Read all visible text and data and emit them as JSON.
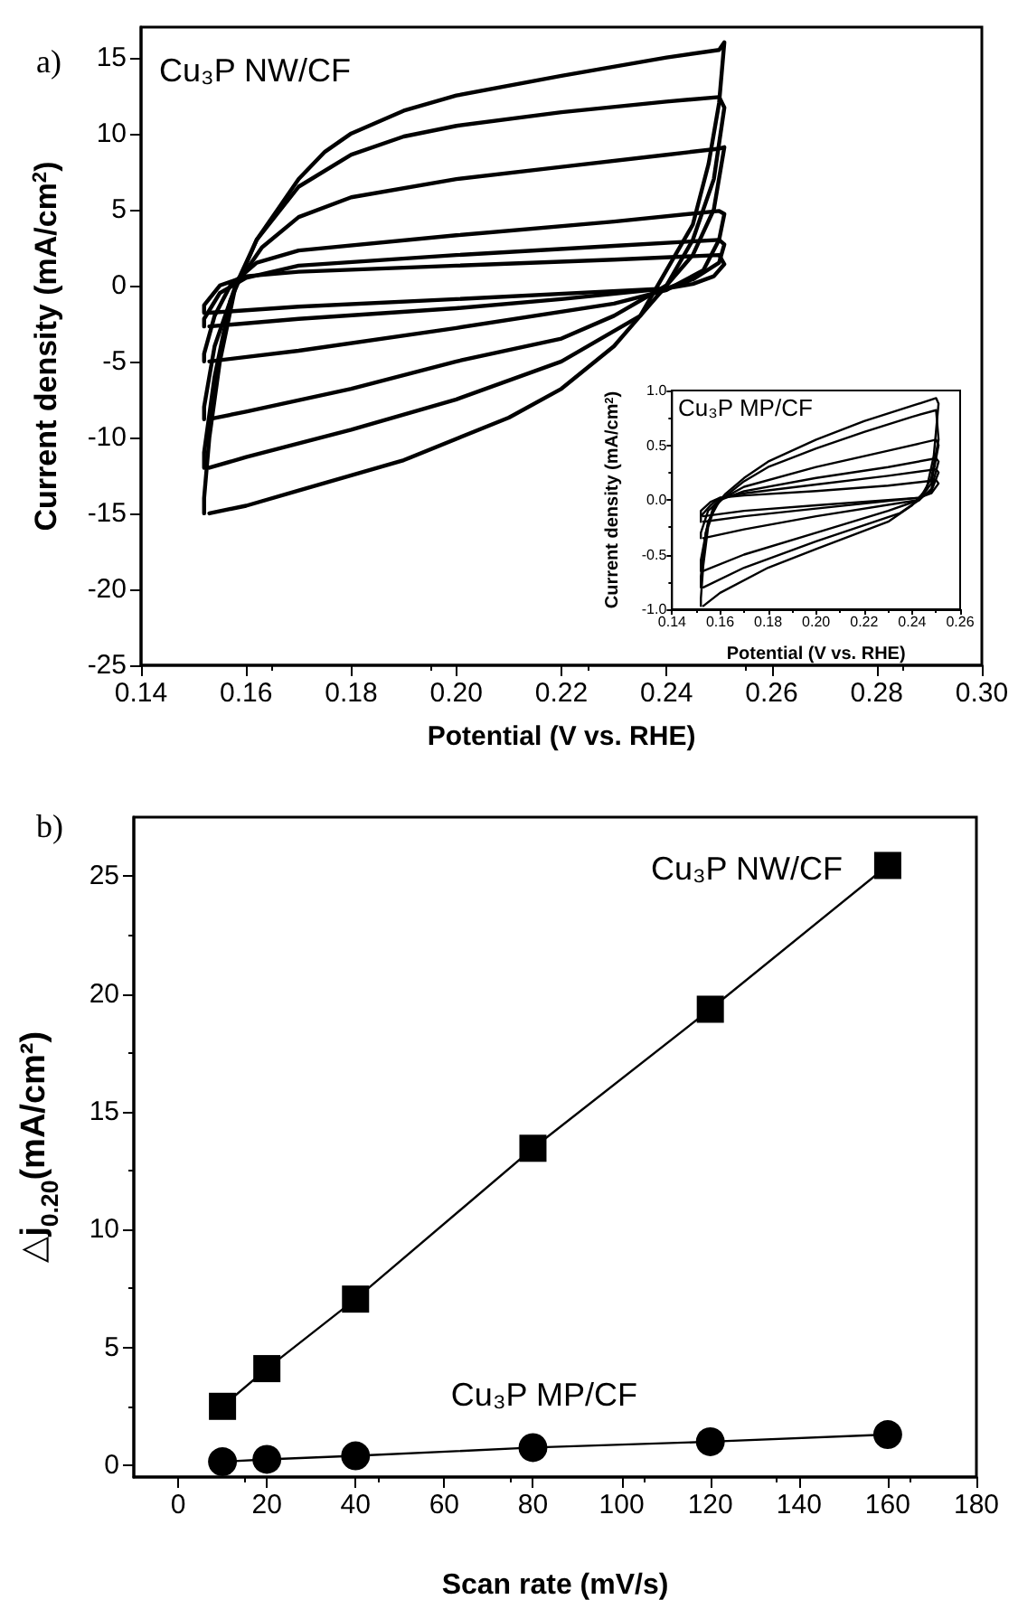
{
  "chart_data": [
    {
      "type": "line",
      "xlabel": "Potential (V vs. RHE)",
      "ylabel": "Current density (mA/cm$^{2}$)",
      "annotations": [
        "a)",
        "Cu₃P NW/CF"
      ],
      "marker": "none",
      "xlim": [
        0.14,
        0.3
      ],
      "ylim": [
        -25,
        17
      ],
      "xticks": [
        {
          "value": 0.14,
          "label": "0.14"
        },
        {
          "value": 0.16,
          "label": "0.16"
        },
        {
          "value": 0.18,
          "label": "0.18"
        },
        {
          "value": 0.2,
          "label": "0.20"
        },
        {
          "value": 0.22,
          "label": "0.22"
        },
        {
          "value": 0.24,
          "label": "0.24"
        },
        {
          "value": 0.26,
          "label": "0.26"
        },
        {
          "value": 0.28,
          "label": "0.28"
        },
        {
          "value": 0.3,
          "label": "0.30"
        }
      ],
      "yticks": [
        -25,
        -20,
        -15,
        -10,
        -5,
        0,
        5,
        10,
        15
      ],
      "series": [
        {
          "color": "#000000",
          "x": [
            0.152,
            0.152,
            0.153,
            0.155,
            0.158,
            0.162,
            0.166,
            0.17,
            0.175,
            0.18,
            0.19,
            0.2,
            0.22,
            0.24,
            0.25,
            0.251,
            0.25,
            0.248,
            0.245,
            0.24,
            0.235,
            0.23,
            0.22,
            0.21,
            0.19,
            0.18,
            0.17,
            0.16,
            0.153
          ],
          "values": [
            -15,
            -14,
            -10,
            -5,
            0,
            3,
            5,
            7,
            8.8,
            10,
            11.5,
            12.5,
            13.8,
            15,
            15.5,
            16,
            12,
            8,
            4,
            1,
            -2,
            -4,
            -6.8,
            -8.7,
            -11.5,
            -12.5,
            -13.5,
            -14.5,
            -15
          ]
        },
        {
          "color": "#000000",
          "x": [
            0.152,
            0.152,
            0.154,
            0.157,
            0.162,
            0.17,
            0.18,
            0.19,
            0.2,
            0.22,
            0.24,
            0.25,
            0.251,
            0.249,
            0.245,
            0.24,
            0.235,
            0.22,
            0.2,
            0.18,
            0.16,
            0.153
          ],
          "values": [
            -12,
            -11,
            -6,
            -1,
            3,
            6.5,
            8.6,
            9.8,
            10.5,
            11.4,
            12.1,
            12.4,
            11.7,
            7,
            3,
            0,
            -2,
            -5,
            -7.5,
            -9.5,
            -11.3,
            -12
          ]
        },
        {
          "color": "#000000",
          "x": [
            0.152,
            0.152,
            0.154,
            0.158,
            0.163,
            0.17,
            0.18,
            0.2,
            0.22,
            0.24,
            0.25,
            0.251,
            0.249,
            0.245,
            0.24,
            0.23,
            0.22,
            0.2,
            0.18,
            0.16,
            0.153
          ],
          "values": [
            -8.8,
            -8,
            -4,
            0,
            2.5,
            4.5,
            5.8,
            7,
            7.8,
            8.6,
            9,
            9.1,
            5,
            2,
            0,
            -2,
            -3.5,
            -5,
            -6.8,
            -8.3,
            -8.8
          ]
        },
        {
          "color": "#000000",
          "x": [
            0.152,
            0.152,
            0.154,
            0.157,
            0.162,
            0.17,
            0.2,
            0.23,
            0.25,
            0.251,
            0.25,
            0.247,
            0.24,
            0.23,
            0.2,
            0.17,
            0.153
          ],
          "values": [
            -5,
            -4.5,
            -2,
            0,
            1.5,
            2.3,
            3.3,
            4.2,
            4.9,
            4.7,
            3,
            1,
            -0.3,
            -1.2,
            -2.8,
            -4.3,
            -5
          ]
        },
        {
          "color": "#000000",
          "x": [
            0.152,
            0.152,
            0.155,
            0.16,
            0.17,
            0.2,
            0.23,
            0.25,
            0.251,
            0.25,
            0.245,
            0.24,
            0.22,
            0.2,
            0.17,
            0.153
          ],
          "values": [
            -2.7,
            -2.2,
            -0.5,
            0.5,
            1.3,
            2,
            2.6,
            3,
            2.7,
            1.5,
            0.4,
            -0.2,
            -0.9,
            -1.5,
            -2.2,
            -2.7
          ]
        },
        {
          "color": "#000000",
          "x": [
            0.152,
            0.152,
            0.155,
            0.16,
            0.17,
            0.2,
            0.23,
            0.25,
            0.251,
            0.249,
            0.245,
            0.24,
            0.2,
            0.17,
            0.153
          ],
          "values": [
            -1.8,
            -1.3,
            0,
            0.6,
            0.9,
            1.3,
            1.7,
            2,
            1.4,
            0.6,
            0.1,
            -0.2,
            -0.9,
            -1.4,
            -1.8
          ]
        }
      ]
    },
    {
      "type": "line",
      "xlabel": "Potential (V vs. RHE)",
      "ylabel": "Current density (mA/cm$^{2}$)",
      "annotations": [
        "Cu₃P MP/CF"
      ],
      "marker": "none",
      "xlim": [
        0.14,
        0.26
      ],
      "ylim": [
        -1,
        1
      ],
      "xticks": [
        {
          "value": 0.14,
          "label": "0.14"
        },
        {
          "value": 0.16,
          "label": "0.16"
        },
        {
          "value": 0.18,
          "label": "0.18"
        },
        {
          "value": 0.2,
          "label": "0.20"
        },
        {
          "value": 0.22,
          "label": "0.22"
        },
        {
          "value": 0.24,
          "label": "0.24"
        },
        {
          "value": 0.26,
          "label": "0.26"
        }
      ],
      "yticks": [
        {
          "value": -1,
          "label": "-1.0"
        },
        {
          "value": -0.5,
          "label": "-0.5"
        },
        {
          "value": 0,
          "label": "0.0"
        },
        {
          "value": 0.5,
          "label": "0.5"
        },
        {
          "value": 1,
          "label": "1.0"
        }
      ],
      "series": [
        {
          "color": "#000000",
          "x": [
            0.152,
            0.152,
            0.153,
            0.155,
            0.158,
            0.162,
            0.17,
            0.18,
            0.2,
            0.22,
            0.24,
            0.25,
            0.251,
            0.249,
            0.246,
            0.24,
            0.23,
            0.2,
            0.18,
            0.16,
            0.153
          ],
          "values": [
            -0.97,
            -0.9,
            -0.6,
            -0.25,
            -0.05,
            0.05,
            0.2,
            0.35,
            0.55,
            0.72,
            0.86,
            0.93,
            0.88,
            0.4,
            0.1,
            -0.05,
            -0.2,
            -0.45,
            -0.62,
            -0.85,
            -0.97
          ]
        },
        {
          "color": "#000000",
          "x": [
            0.152,
            0.152,
            0.154,
            0.157,
            0.162,
            0.17,
            0.18,
            0.2,
            0.22,
            0.24,
            0.25,
            0.251,
            0.248,
            0.243,
            0.235,
            0.2,
            0.17,
            0.153
          ],
          "values": [
            -0.8,
            -0.7,
            -0.3,
            -0.08,
            0.03,
            0.17,
            0.3,
            0.47,
            0.62,
            0.76,
            0.82,
            0.55,
            0.2,
            0,
            -0.12,
            -0.38,
            -0.62,
            -0.8
          ]
        },
        {
          "color": "#000000",
          "x": [
            0.152,
            0.152,
            0.155,
            0.16,
            0.17,
            0.2,
            0.23,
            0.25,
            0.251,
            0.248,
            0.243,
            0.23,
            0.2,
            0.17,
            0.153
          ],
          "values": [
            -0.65,
            -0.55,
            -0.2,
            0,
            0.12,
            0.3,
            0.45,
            0.55,
            0.5,
            0.15,
            0,
            -0.1,
            -0.3,
            -0.5,
            -0.65
          ]
        },
        {
          "color": "#000000",
          "x": [
            0.152,
            0.152,
            0.155,
            0.16,
            0.17,
            0.2,
            0.23,
            0.25,
            0.251,
            0.248,
            0.243,
            0.2,
            0.17,
            0.153
          ],
          "values": [
            -0.35,
            -0.3,
            -0.1,
            0,
            0.08,
            0.2,
            0.3,
            0.38,
            0.35,
            0.1,
            0,
            -0.15,
            -0.27,
            -0.35
          ]
        },
        {
          "color": "#000000",
          "x": [
            0.152,
            0.152,
            0.156,
            0.16,
            0.17,
            0.2,
            0.23,
            0.25,
            0.251,
            0.248,
            0.243,
            0.2,
            0.17,
            0.153
          ],
          "values": [
            -0.2,
            -0.15,
            -0.05,
            0.02,
            0.06,
            0.14,
            0.22,
            0.28,
            0.25,
            0.08,
            0.02,
            -0.08,
            -0.15,
            -0.2
          ]
        },
        {
          "color": "#000000",
          "x": [
            0.152,
            0.152,
            0.156,
            0.16,
            0.17,
            0.2,
            0.23,
            0.25,
            0.251,
            0.248,
            0.243,
            0.2,
            0.17,
            0.153
          ],
          "values": [
            -0.15,
            -0.1,
            -0.02,
            0.02,
            0.04,
            0.08,
            0.13,
            0.18,
            0.15,
            0.06,
            0.02,
            -0.05,
            -0.1,
            -0.15
          ]
        }
      ]
    },
    {
      "type": "line",
      "xlabel": "Scan rate (mV/s)",
      "ylabel": "△j$_{0.20}$(mA/cm²)",
      "annotations": [
        "b)"
      ],
      "xlim": [
        -10,
        180
      ],
      "ylim": [
        -0.5,
        27.5
      ],
      "xticks": [
        0,
        20,
        40,
        60,
        80,
        100,
        120,
        140,
        160,
        180
      ],
      "yticks": [
        0,
        5,
        10,
        15,
        20,
        25
      ],
      "x": [
        10,
        20,
        40,
        80,
        120,
        160
      ],
      "series": [
        {
          "name": "Cu₃P NW/CF",
          "color": "#000000",
          "marker": "square",
          "values": [
            2.5,
            4.1,
            7.05,
            13.45,
            19.35,
            25.45
          ]
        },
        {
          "name": "Cu₃P MP/CF",
          "color": "#000000",
          "marker": "circle",
          "values": [
            0.15,
            0.25,
            0.4,
            0.75,
            1.0,
            1.3
          ]
        }
      ]
    }
  ]
}
